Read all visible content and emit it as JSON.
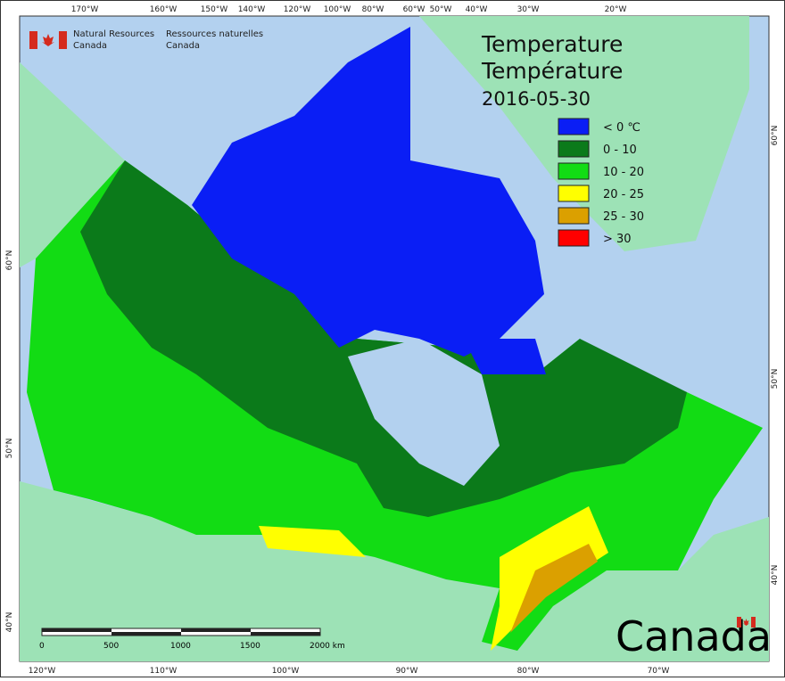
{
  "header": {
    "agency_en": "Natural Resources",
    "country_en": "Canada",
    "agency_fr": "Ressources naturelles",
    "country_fr": "Canada"
  },
  "title": {
    "line1": "Temperature",
    "line2": "Température",
    "date": "2016-05-30"
  },
  "legend": [
    {
      "label": "< 0 ℃",
      "color": "#0a1ef5"
    },
    {
      "label": "0 - 10",
      "color": "#0b7a1a"
    },
    {
      "label": "10 - 20",
      "color": "#12dc14"
    },
    {
      "label": "20 - 25",
      "color": "#ffff00"
    },
    {
      "label": "25 - 30",
      "color": "#dba000"
    },
    {
      "label": "> 30",
      "color": "#ff0000"
    }
  ],
  "graticule": {
    "top": [
      "170°W",
      "160°W",
      "150°W",
      "140°W",
      "120°W",
      "100°W",
      "80°W",
      "60°W",
      "50°W",
      "40°W",
      "30°W",
      "20°W"
    ],
    "bottom": [
      "120°W",
      "110°W",
      "100°W",
      "90°W",
      "80°W",
      "70°W"
    ],
    "left": [
      "60°N",
      "50°N",
      "40°N"
    ],
    "right": [
      "60°N",
      "50°N",
      "40°N"
    ]
  },
  "scale_bar": {
    "labels": [
      "0",
      "500",
      "1000",
      "1500",
      "2000 km"
    ]
  },
  "wordmark": "Canada"
}
